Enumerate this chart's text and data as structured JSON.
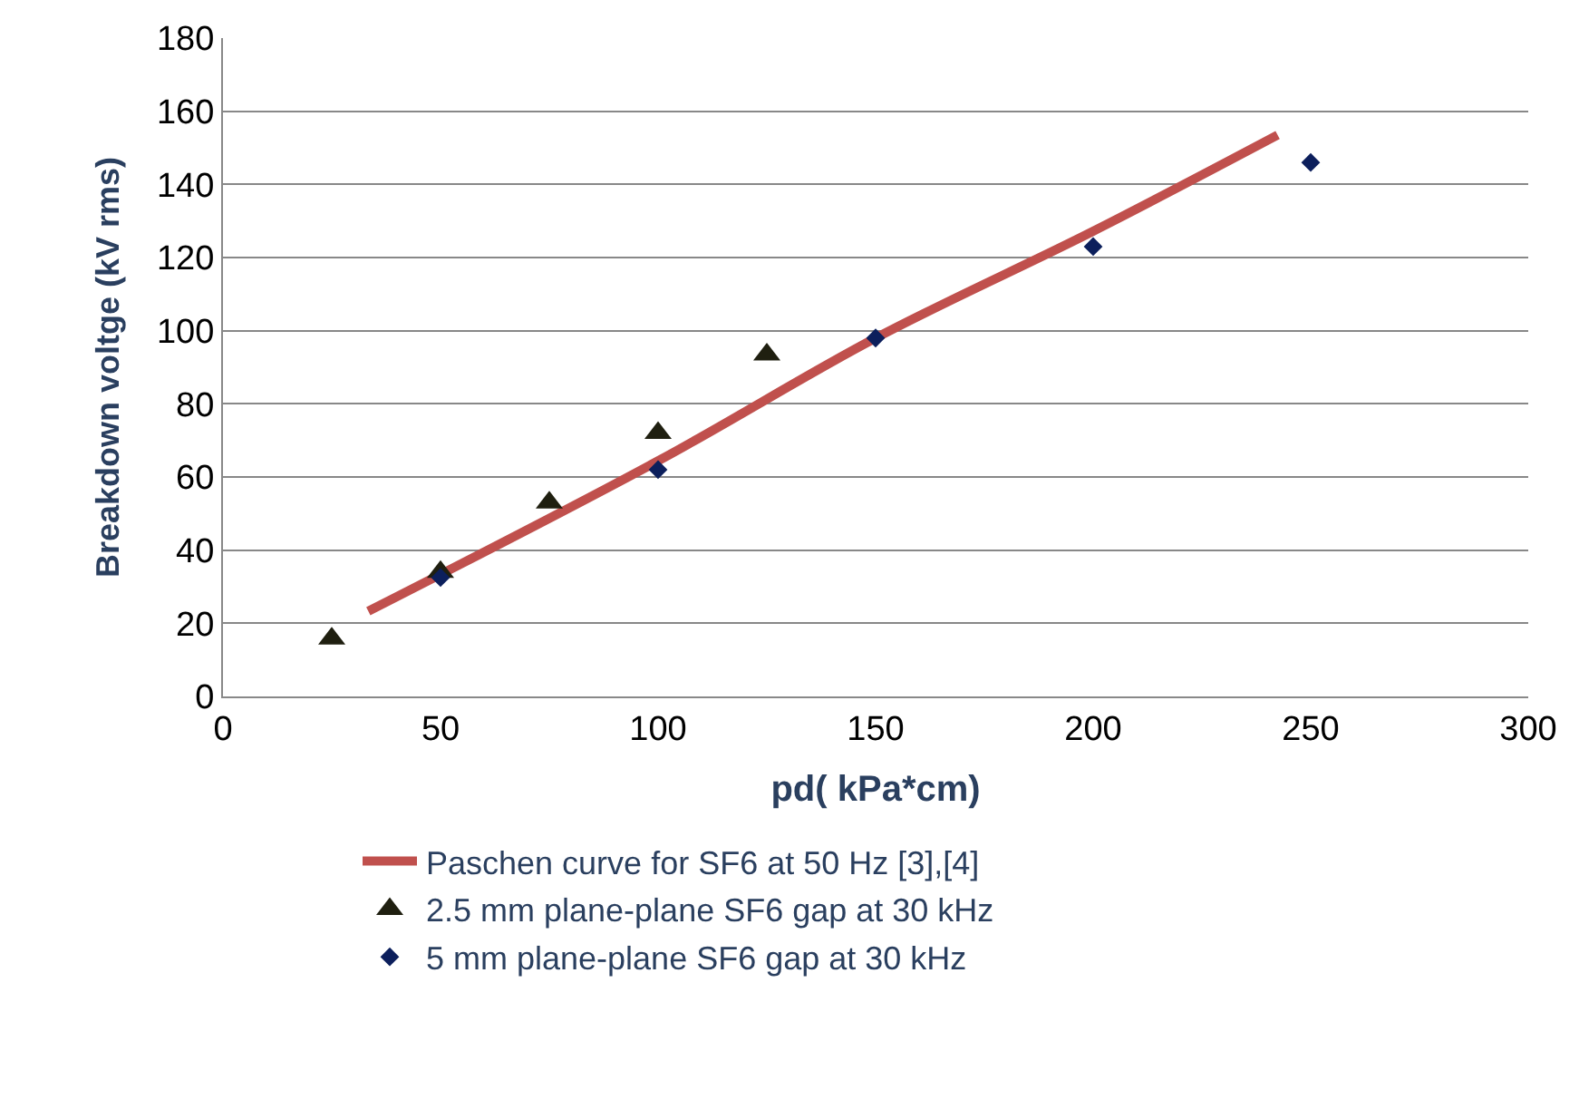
{
  "chart_data": {
    "type": "scatter",
    "xlabel": "pd( kPa*cm)",
    "ylabel": "Breakdown voltge (kV rms)",
    "xlim": [
      0,
      300
    ],
    "xticks": [
      0,
      50,
      100,
      150,
      200,
      250,
      300
    ],
    "ylim": [
      0,
      180
    ],
    "yticks": [
      0,
      20,
      40,
      60,
      80,
      100,
      120,
      140,
      160,
      180
    ],
    "grid": "y",
    "legend": "bottom",
    "series": [
      {
        "name": "Paschen curve for SF6 at 50 Hz [3],[4]",
        "type": "line",
        "color": "#c0504d",
        "marker": "none",
        "line_style": "solid",
        "x": [
          33.4,
          100,
          150,
          200,
          242.4
        ],
        "values": [
          23.3,
          64.4,
          98,
          127.2,
          153.5
        ]
      },
      {
        "name": "2.5 mm plane-plane SF6 gap at 30 kHz",
        "color": "#1f1f10",
        "marker": "triangle",
        "x": [
          25,
          50,
          75,
          100,
          125
        ],
        "values": [
          15.8,
          34,
          53,
          72,
          93.5
        ]
      },
      {
        "name": "5 mm plane-plane SF6 gap at 30 kHz",
        "color": "#0c1f5c",
        "marker": "diamond",
        "x": [
          50,
          100,
          150,
          200,
          250
        ],
        "values": [
          32.5,
          62,
          98,
          123,
          146
        ]
      }
    ]
  }
}
